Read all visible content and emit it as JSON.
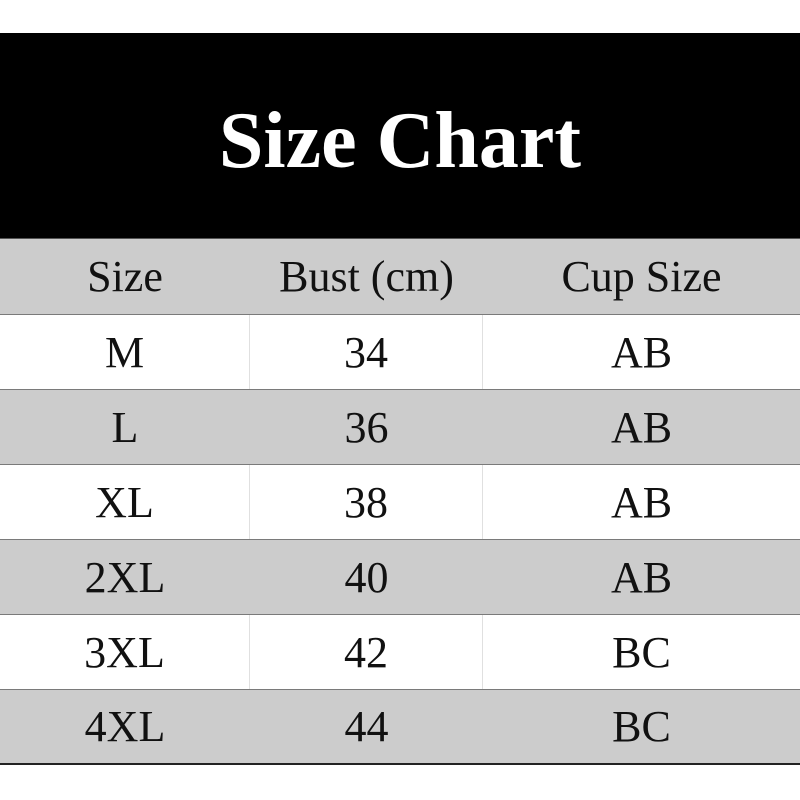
{
  "title": "Size Chart",
  "headers": [
    "Size",
    "Bust (cm)",
    "Cup Size"
  ],
  "rows": [
    [
      "M",
      "34",
      "AB"
    ],
    [
      "L",
      "36",
      "AB"
    ],
    [
      "XL",
      "38",
      "AB"
    ],
    [
      "2XL",
      "40",
      "AB"
    ],
    [
      "3XL",
      "42",
      "BC"
    ],
    [
      "4XL",
      "44",
      "BC"
    ]
  ],
  "colors": {
    "banner": "#000000",
    "stripe": "#cccccc",
    "text": "#111111"
  }
}
